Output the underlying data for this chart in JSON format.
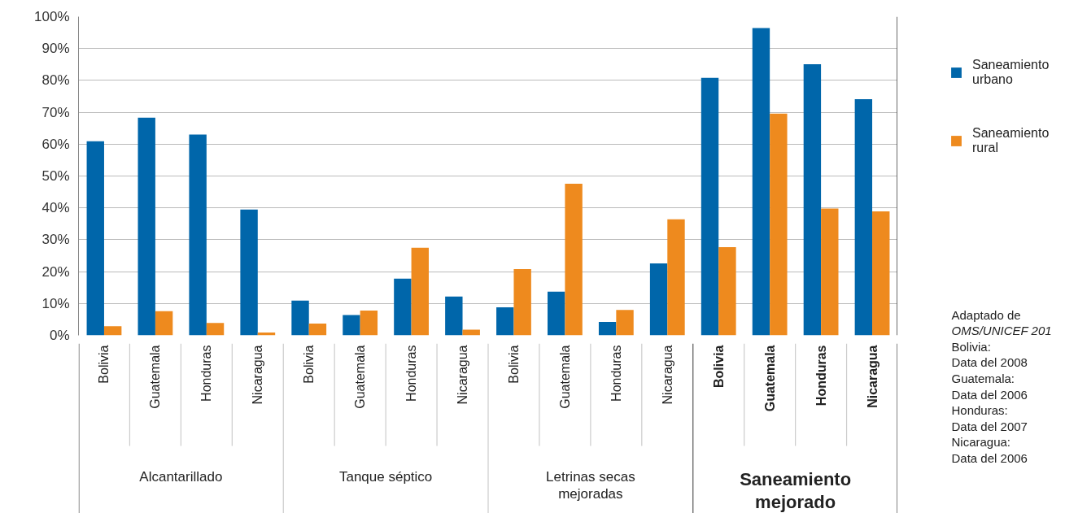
{
  "chart_data": {
    "type": "bar",
    "categories": [
      "Bolivia",
      "Guatemala",
      "Honduras",
      "Nicaragua",
      "Bolivia",
      "Guatemala",
      "Honduras",
      "Nicaragua",
      "Bolivia",
      "Guatemala",
      "Honduras",
      "Nicaragua",
      "Bolivia",
      "Guatemala",
      "Honduras",
      "Nicaragua"
    ],
    "series": [
      {
        "name": "Saneamiento urbano",
        "color": "#0066aa",
        "values": [
          60.9,
          68.3,
          63.0,
          39.5,
          10.9,
          6.4,
          17.8,
          12.2,
          8.8,
          13.7,
          4.2,
          22.6,
          80.8,
          96.4,
          85.1,
          74.1
        ]
      },
      {
        "name": "Saneamiento rural",
        "color": "#ee8a1e",
        "values": [
          2.9,
          7.6,
          3.9,
          0.9,
          3.7,
          7.8,
          27.5,
          1.8,
          20.8,
          47.6,
          8.0,
          36.4,
          27.7,
          69.6,
          39.8,
          38.9
        ]
      }
    ],
    "ylim": [
      0,
      100
    ],
    "yticks": [
      {
        "value": 0,
        "label": "0%"
      },
      {
        "value": 10,
        "label": "10%"
      },
      {
        "value": 20,
        "label": "20%"
      },
      {
        "value": 30,
        "label": "30%"
      },
      {
        "value": 40,
        "label": "40%"
      },
      {
        "value": 50,
        "label": "50%"
      },
      {
        "value": 60,
        "label": "60%"
      },
      {
        "value": 70,
        "label": "70%"
      },
      {
        "value": 80,
        "label": "80%"
      },
      {
        "value": 90,
        "label": "90%"
      },
      {
        "value": 100,
        "label": "100%"
      }
    ],
    "grid": "y",
    "legend": "right",
    "annotations": [
      "Alcantarillado",
      "Tanque séptico",
      "Letrinas secas mejoradas",
      "Saneamiento mejorado",
      "Adaptado de\nOMS/UNICEF 201\nBolivia:\nData del 2008\nGuatemala:\nData del 2006\nHonduras:\nData del 2007\nNicaragua:\nData del 2006"
    ]
  }
}
